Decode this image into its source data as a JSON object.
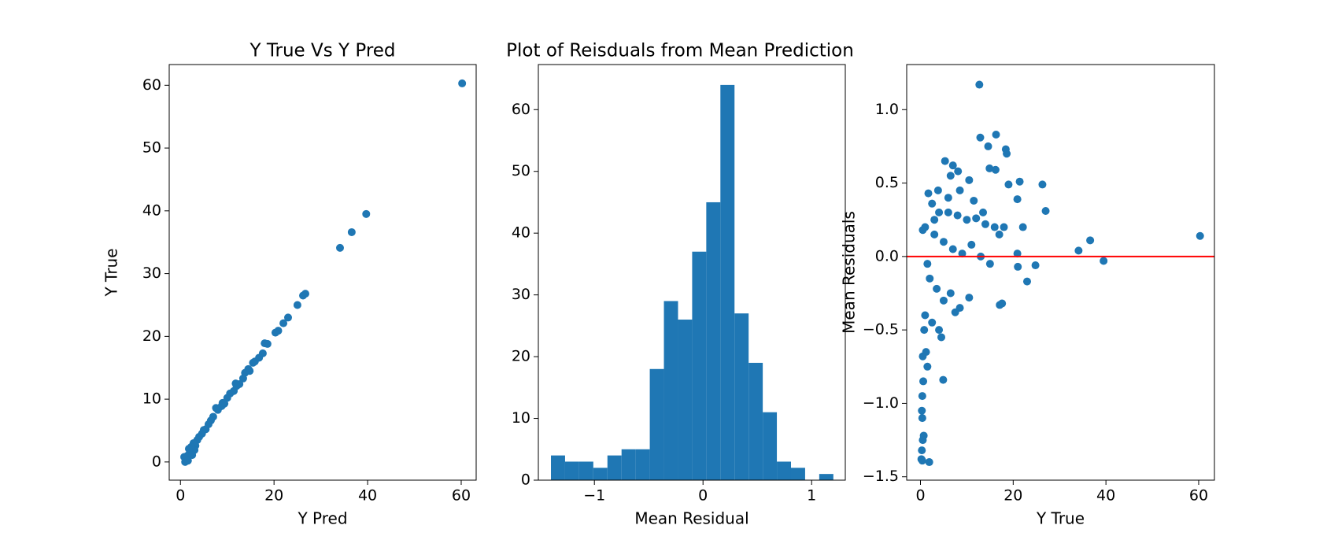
{
  "chart_data": [
    {
      "type": "scatter",
      "title": "Y True Vs Y Pred",
      "xlabel": "Y Pred",
      "ylabel": "Y True",
      "color": "#1f77b4",
      "xlim": [
        -2.4,
        63.2
      ],
      "ylim": [
        -2.9,
        63.3
      ],
      "xticks": [
        0,
        20,
        40,
        60
      ],
      "yticks": [
        0,
        10,
        20,
        30,
        40,
        50,
        60
      ],
      "x": [
        60.2,
        39.7,
        36.6,
        34.1,
        26.7,
        26.2,
        25.0,
        23.0,
        22.0,
        20.9,
        20.3,
        18.6,
        18.0,
        17.6,
        16.8,
        15.9,
        15.5,
        14.5,
        13.8,
        13.4,
        12.6,
        11.8,
        11.4,
        10.6,
        10.0,
        9.4,
        8.8,
        8.0,
        7.6,
        7.0,
        6.5,
        6.0,
        5.4,
        5.0,
        4.6,
        4.0,
        3.6,
        3.2,
        3.0,
        2.8,
        2.3,
        2.0,
        1.8,
        1.5,
        1.2,
        1.0,
        0.8,
        1.6,
        2.5,
        12.0,
        9.0,
        14.8
      ],
      "values": [
        60.3,
        39.5,
        36.6,
        34.1,
        26.8,
        26.5,
        25.0,
        23.0,
        22.1,
        20.9,
        20.6,
        18.8,
        18.9,
        17.3,
        16.6,
        16.0,
        15.8,
        14.8,
        14.2,
        13.3,
        12.4,
        12.5,
        11.3,
        10.9,
        10.2,
        9.3,
        8.9,
        8.3,
        8.6,
        7.2,
        6.6,
        6.0,
        5.2,
        5.1,
        4.5,
        4.0,
        3.5,
        2.6,
        1.9,
        3.0,
        2.4,
        1.5,
        2.1,
        1.0,
        0.5,
        0.0,
        0.8,
        0.2,
        1.1,
        12.1,
        9.4,
        14.5
      ]
    },
    {
      "type": "histogram",
      "title": "Plot of Reisduals from Mean Prediction",
      "xlabel": "Mean Residual",
      "color": "#1f77b4",
      "xlim": [
        -1.516,
        1.31
      ],
      "ylim": [
        0,
        67.3
      ],
      "xticks": [
        {
          "value": -1,
          "label": "−1"
        },
        0,
        1
      ],
      "yticks": [
        0,
        10,
        20,
        30,
        40,
        50,
        60
      ],
      "bins": [
        -1.4,
        -1.27,
        -1.14,
        -1.01,
        -0.88,
        -0.75,
        -0.62,
        -0.49,
        -0.36,
        -0.23,
        -0.1,
        0.03,
        0.16,
        0.29,
        0.42,
        0.55,
        0.68,
        0.81,
        0.94,
        1.07,
        1.2
      ],
      "values": [
        4,
        3,
        3,
        2,
        4,
        5,
        5,
        18,
        29,
        26,
        37,
        45,
        64,
        27,
        19,
        11,
        3,
        2,
        0,
        1
      ]
    },
    {
      "type": "scatter",
      "xlabel": "Y True",
      "ylabel": "Mean Residuals",
      "color": "#1f77b4",
      "xlim": [
        -2.97,
        63.4
      ],
      "ylim": [
        -1.523,
        1.307
      ],
      "xticks": [
        0,
        20,
        40,
        60
      ],
      "yticks": [
        {
          "value": -1.5,
          "label": "−1.5"
        },
        {
          "value": -1.0,
          "label": "−1.0"
        },
        {
          "value": -0.5,
          "label": "−0.5"
        },
        {
          "value": 0,
          "label": "0.0"
        },
        0.5,
        {
          "value": 1.0,
          "label": "1.0"
        }
      ],
      "hline": {
        "value": 0,
        "color": "#ff0000"
      },
      "x": [
        12.7,
        16.3,
        12.9,
        18.4,
        18.6,
        14.6,
        5.3,
        7.0,
        26.3,
        21.4,
        14.9,
        16.2,
        8.1,
        6.5,
        3.8,
        1.7,
        10.5,
        19.0,
        20.9,
        22.1,
        27.0,
        36.6,
        34.1,
        39.5,
        60.3,
        2.5,
        4.0,
        6.0,
        8.0,
        10.0,
        12.0,
        14.0,
        16.0,
        17.0,
        1.0,
        0.5,
        3.0,
        5.0,
        7.0,
        9.0,
        11.0,
        13.0,
        15.0,
        18.0,
        20.9,
        21.0,
        24.8,
        23.0,
        17.1,
        17.6,
        1.5,
        2.0,
        3.5,
        5.0,
        6.5,
        8.5,
        10.5,
        2.5,
        4.0,
        4.5,
        1.0,
        0.8,
        1.2,
        0.5,
        1.5,
        0.6,
        0.4,
        0.3,
        0.4,
        0.7,
        0.5,
        0.3,
        0.2,
        0.4,
        1.9,
        4.9,
        7.5,
        3.0,
        6.0,
        8.5,
        11.5,
        13.5
      ],
      "values": [
        1.17,
        0.83,
        0.81,
        0.73,
        0.7,
        0.75,
        0.65,
        0.62,
        0.49,
        0.51,
        0.6,
        0.59,
        0.58,
        0.55,
        0.45,
        0.43,
        0.52,
        0.49,
        0.39,
        0.2,
        0.31,
        0.11,
        0.04,
        -0.03,
        0.14,
        0.36,
        0.3,
        0.3,
        0.28,
        0.25,
        0.26,
        0.22,
        0.2,
        0.15,
        0.2,
        0.18,
        0.15,
        0.1,
        0.05,
        0.02,
        0.08,
        0.0,
        -0.05,
        0.2,
        0.02,
        -0.07,
        -0.06,
        -0.17,
        -0.33,
        -0.32,
        -0.05,
        -0.15,
        -0.22,
        -0.3,
        -0.25,
        -0.35,
        -0.28,
        -0.45,
        -0.5,
        -0.55,
        -0.4,
        -0.5,
        -0.65,
        -0.68,
        -0.75,
        -0.85,
        -0.95,
        -1.05,
        -1.1,
        -1.22,
        -1.25,
        -1.32,
        -1.38,
        -1.39,
        -1.4,
        -0.84,
        -0.38,
        0.25,
        0.4,
        0.45,
        0.38,
        0.3
      ]
    }
  ]
}
